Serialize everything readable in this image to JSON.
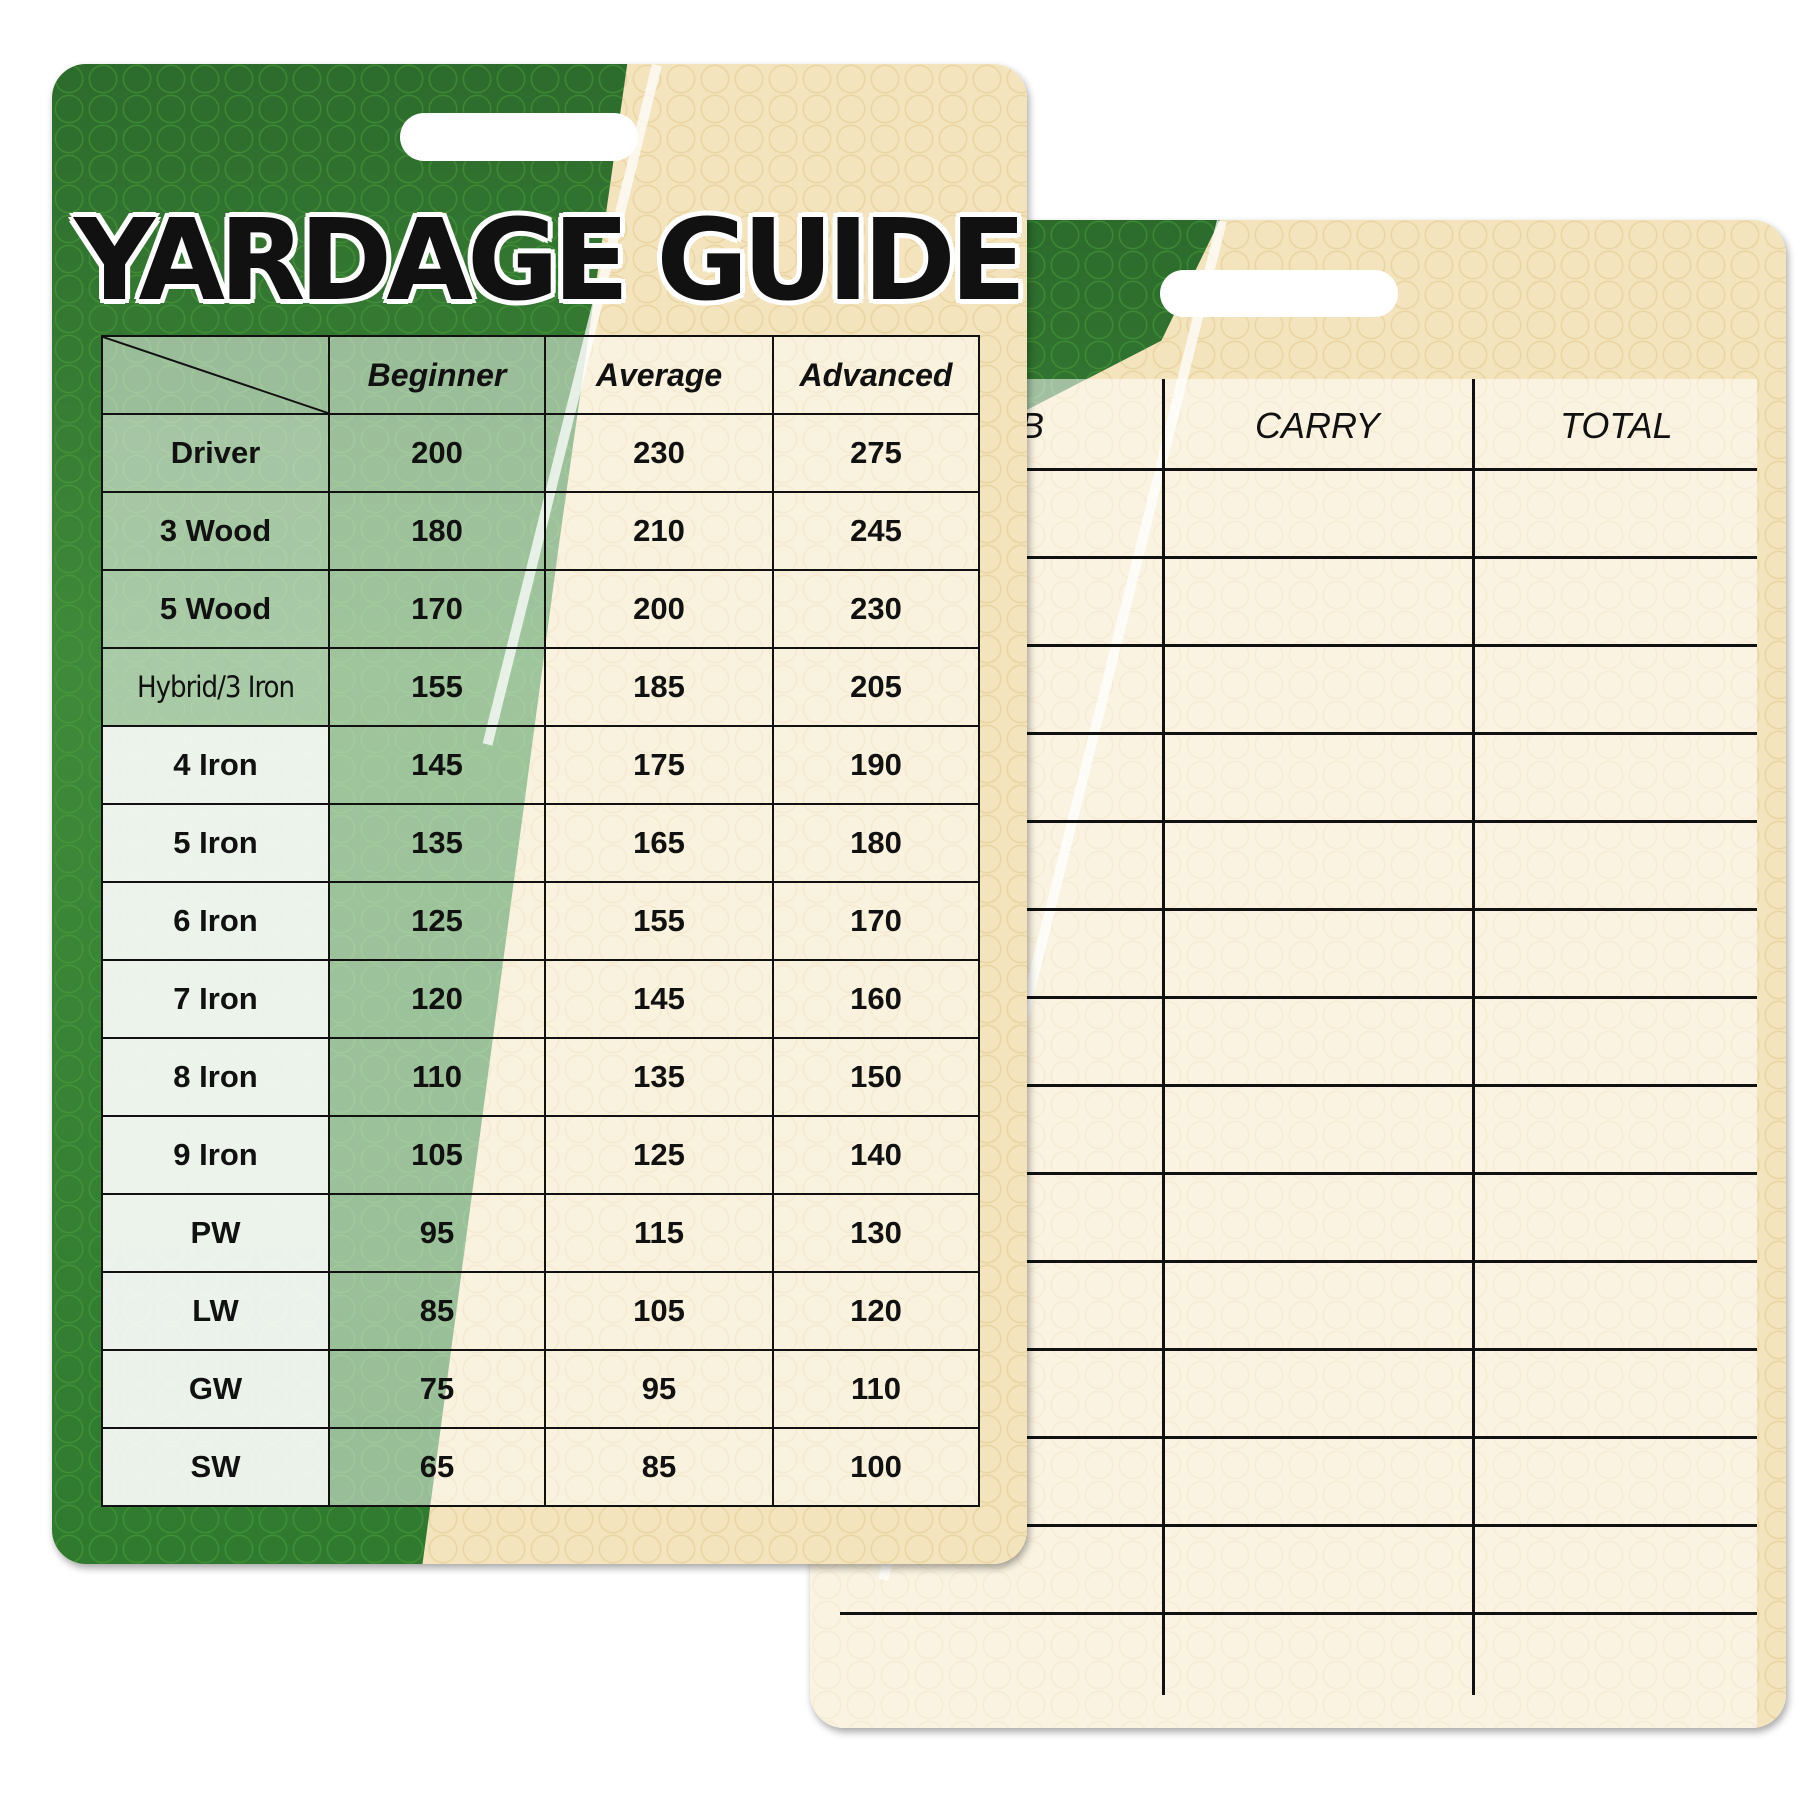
{
  "front_card": {
    "title": "YARDAGE GUIDE",
    "headers": [
      "Beginner",
      "Average",
      "Advanced"
    ],
    "rows": [
      {
        "club": "Driver",
        "beginner": "200",
        "average": "230",
        "advanced": "275"
      },
      {
        "club": "3 Wood",
        "beginner": "180",
        "average": "210",
        "advanced": "245"
      },
      {
        "club": "5 Wood",
        "beginner": "170",
        "average": "200",
        "advanced": "230"
      },
      {
        "club": "Hybrid/3 Iron",
        "beginner": "155",
        "average": "185",
        "advanced": "205"
      },
      {
        "club": "4 Iron",
        "beginner": "145",
        "average": "175",
        "advanced": "190"
      },
      {
        "club": "5 Iron",
        "beginner": "135",
        "average": "165",
        "advanced": "180"
      },
      {
        "club": "6 Iron",
        "beginner": "125",
        "average": "155",
        "advanced": "170"
      },
      {
        "club": "7 Iron",
        "beginner": "120",
        "average": "145",
        "advanced": "160"
      },
      {
        "club": "8 Iron",
        "beginner": "110",
        "average": "135",
        "advanced": "150"
      },
      {
        "club": "9 Iron",
        "beginner": "105",
        "average": "125",
        "advanced": "140"
      },
      {
        "club": "PW",
        "beginner": "95",
        "average": "115",
        "advanced": "130"
      },
      {
        "club": "LW",
        "beginner": "85",
        "average": "105",
        "advanced": "120"
      },
      {
        "club": "GW",
        "beginner": "75",
        "average": "95",
        "advanced": "110"
      },
      {
        "club": "SW",
        "beginner": "65",
        "average": "85",
        "advanced": "100"
      }
    ]
  },
  "back_card": {
    "headers": {
      "club_partial": "B",
      "carry": "CARRY",
      "total": "TOTAL"
    },
    "blank_rows": 14
  },
  "colors": {
    "green": "#3f8a3a",
    "cream": "#f3e4bd",
    "ink": "#111111"
  }
}
